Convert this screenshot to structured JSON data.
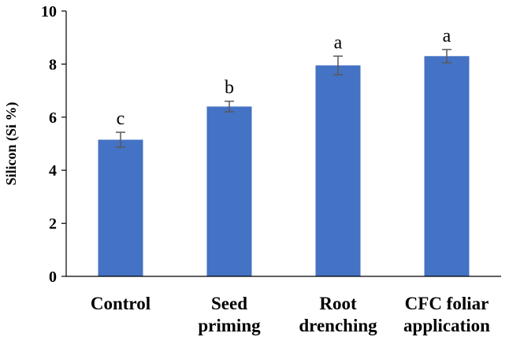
{
  "chart_data": {
    "type": "bar",
    "title": "",
    "xlabel": "",
    "ylabel": "Silicon (Si %)",
    "ylim": [
      0,
      10
    ],
    "yticks": [
      0,
      2,
      4,
      6,
      8,
      10
    ],
    "yticks_text": [
      "0",
      "2",
      "4",
      "6",
      "8",
      "10"
    ],
    "categories": [
      [
        "Control"
      ],
      [
        "Seed",
        "priming"
      ],
      [
        "Root",
        "drenching"
      ],
      [
        "CFC foliar",
        "application"
      ]
    ],
    "values": [
      5.15,
      6.4,
      7.95,
      8.3
    ],
    "errors": [
      0.28,
      0.2,
      0.35,
      0.25
    ],
    "letters": [
      "c",
      "b",
      "a",
      "a"
    ],
    "bar_color": "#4472C4",
    "error_color": "#595959",
    "axis_color": "#000000",
    "grid": false
  }
}
